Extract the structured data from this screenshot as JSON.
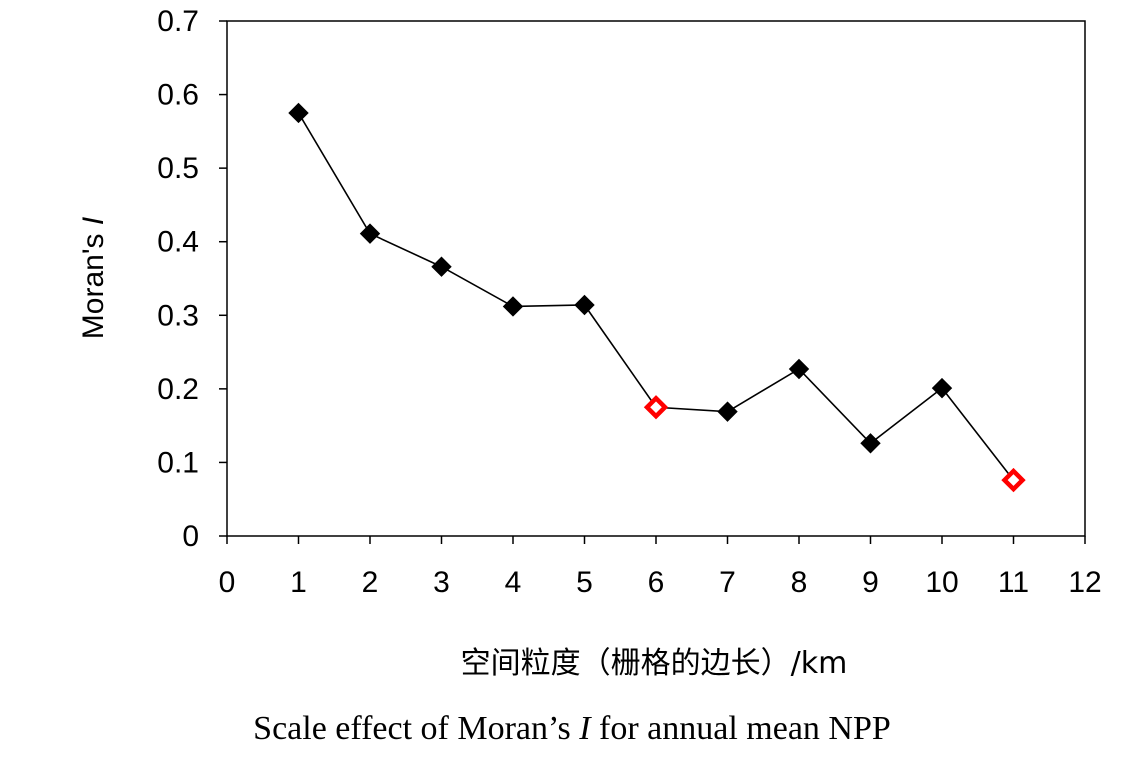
{
  "chart_data": {
    "type": "line",
    "x": [
      1,
      2,
      3,
      4,
      5,
      6,
      7,
      8,
      9,
      10,
      11
    ],
    "y": [
      0.575,
      0.411,
      0.366,
      0.312,
      0.314,
      0.175,
      0.169,
      0.227,
      0.126,
      0.201,
      0.076
    ],
    "highlighted_x": [
      6,
      11
    ],
    "colors": {
      "line": "#000000",
      "marker": "#000000",
      "highlight": "#ff0000"
    },
    "xlim": [
      0,
      12
    ],
    "ylim": [
      0,
      0.7
    ],
    "x_ticks": [
      0,
      1,
      2,
      3,
      4,
      5,
      6,
      7,
      8,
      9,
      10,
      11,
      12
    ],
    "y_ticks": [
      "0",
      "0.1",
      "0.2",
      "0.3",
      "0.4",
      "0.5",
      "0.6",
      "0.7"
    ],
    "ylabel_text": "Moran's ",
    "ylabel_italic": "I",
    "xlabel": "空间粒度（栅格的边长）/km",
    "caption": {
      "before": "Scale effect of Moran’s ",
      "italic": "I",
      "after": " for annual mean NPP"
    },
    "grid": false
  }
}
